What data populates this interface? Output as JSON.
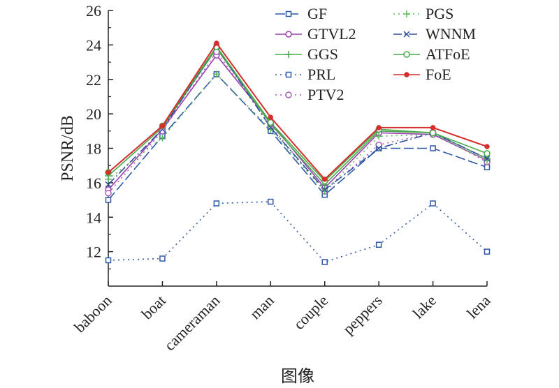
{
  "chart_data": {
    "type": "line",
    "title": "",
    "xlabel": "图像",
    "ylabel": "PSNR/dB",
    "categories": [
      "baboon",
      "boat",
      "cameraman",
      "man",
      "couple",
      "peppers",
      "lake",
      "lena"
    ],
    "ylim": [
      10,
      26
    ],
    "yticks": [
      12,
      14,
      16,
      18,
      20,
      22,
      24,
      26
    ],
    "grid": false,
    "legend_placement": "top-right",
    "series": [
      {
        "name": "GF",
        "color": "#2f58a8",
        "dash": "long-dash",
        "marker": "square-open",
        "values": [
          15.0,
          18.7,
          22.3,
          19.0,
          15.3,
          18.0,
          18.0,
          16.9
        ]
      },
      {
        "name": "GTVL2",
        "color": "#9b3fb0",
        "dash": "solid",
        "marker": "circle-open",
        "values": [
          15.6,
          19.1,
          23.4,
          19.5,
          15.7,
          18.9,
          18.8,
          17.3
        ]
      },
      {
        "name": "GGS",
        "color": "#4aa84a",
        "dash": "solid",
        "marker": "plus",
        "values": [
          16.4,
          19.2,
          23.8,
          19.4,
          15.9,
          19.0,
          18.9,
          17.4
        ]
      },
      {
        "name": "PRL",
        "color": "#2f58a8",
        "dash": "dotted",
        "marker": "square-open",
        "values": [
          11.5,
          11.6,
          14.8,
          14.9,
          11.4,
          12.4,
          14.8,
          12.0
        ]
      },
      {
        "name": "PTV2",
        "color": "#a85ab8",
        "dash": "dotted",
        "marker": "circle-open",
        "values": [
          15.4,
          19.0,
          23.6,
          19.3,
          15.5,
          18.2,
          18.9,
          17.2
        ]
      },
      {
        "name": "PGS",
        "color": "#5cb85c",
        "dash": "dotted",
        "marker": "plus",
        "values": [
          16.2,
          18.6,
          22.3,
          19.1,
          15.5,
          18.7,
          18.8,
          17.3
        ]
      },
      {
        "name": "WNNM",
        "color": "#2f4fa0",
        "dash": "dash-dot",
        "marker": "x",
        "values": [
          15.9,
          19.1,
          23.9,
          19.2,
          15.6,
          18.0,
          18.9,
          17.4
        ]
      },
      {
        "name": "ATFoE",
        "color": "#4aa84a",
        "dash": "solid",
        "marker": "circle-open",
        "values": [
          16.6,
          19.3,
          23.9,
          19.5,
          16.1,
          19.1,
          18.9,
          17.7
        ]
      },
      {
        "name": "FoE",
        "color": "#d62d2d",
        "dash": "solid",
        "marker": "dot",
        "values": [
          16.6,
          19.3,
          24.1,
          19.8,
          16.2,
          19.2,
          19.2,
          18.1
        ]
      }
    ]
  }
}
